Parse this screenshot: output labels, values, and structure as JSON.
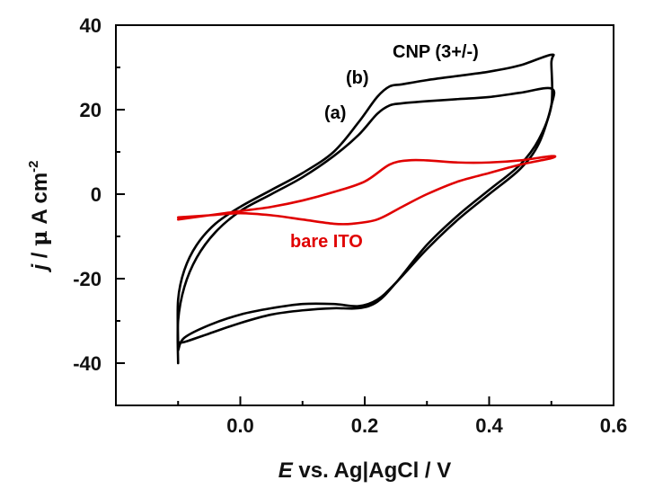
{
  "chart_data": {
    "type": "line",
    "xlabel": {
      "italic": "E",
      "rest": " vs. Ag|AgCl / V"
    },
    "ylabel": {
      "italic": "j",
      "mid": " / ",
      "mu": "μ",
      "rest": " A cm",
      "sup": "-2"
    },
    "xlim": [
      -0.2,
      0.6
    ],
    "ylim": [
      -50,
      40
    ],
    "xticks": [
      0.0,
      0.2,
      0.4,
      0.6
    ],
    "xtick_labels": [
      "0.0",
      "0.2",
      "0.4",
      "0.6"
    ],
    "yticks": [
      40,
      20,
      0,
      -20,
      -40
    ],
    "ytick_labels": [
      "40",
      "20",
      "0",
      "-20",
      "-40"
    ],
    "colors": {
      "cnp": "#000000",
      "ito": "#e00000"
    },
    "annotations": {
      "cnp": "CNP (3+/-)",
      "a": "(a)",
      "b": "(b)",
      "ito": "bare ITO"
    },
    "series": [
      {
        "id": "b",
        "color": "#000000",
        "x": [
          -0.1,
          -0.1,
          -0.09,
          -0.07,
          -0.04,
          0.0,
          0.05,
          0.1,
          0.15,
          0.19,
          0.22,
          0.24,
          0.26,
          0.3,
          0.35,
          0.4,
          0.45,
          0.5,
          0.5,
          0.5,
          0.48,
          0.45,
          0.4,
          0.35,
          0.3,
          0.25,
          0.22,
          0.19,
          0.15,
          0.1,
          0.05,
          0.0,
          -0.05,
          -0.09,
          -0.1
        ],
        "y": [
          -35,
          -25,
          -18,
          -12,
          -7,
          -3,
          1,
          5,
          10,
          17,
          23,
          25.5,
          26,
          27,
          28,
          29,
          30.5,
          33,
          31,
          21,
          13,
          7,
          1,
          -5,
          -12,
          -21,
          -25.5,
          -27,
          -27,
          -27.5,
          -28.5,
          -30.5,
          -33,
          -35,
          -35
        ]
      },
      {
        "id": "a",
        "color": "#000000",
        "x": [
          -0.1,
          -0.1,
          -0.09,
          -0.07,
          -0.04,
          0.0,
          0.05,
          0.1,
          0.15,
          0.19,
          0.22,
          0.24,
          0.26,
          0.3,
          0.35,
          0.4,
          0.45,
          0.5,
          0.5,
          0.48,
          0.45,
          0.4,
          0.35,
          0.3,
          0.25,
          0.22,
          0.19,
          0.15,
          0.1,
          0.05,
          0.0,
          -0.05,
          -0.09,
          -0.1
        ],
        "y": [
          -40,
          -30,
          -22,
          -15,
          -9,
          -4,
          0,
          4,
          9,
          14,
          19,
          21,
          21.5,
          22,
          22.5,
          23,
          24,
          25,
          21,
          12,
          6,
          0,
          -6,
          -13,
          -21,
          -25,
          -26.5,
          -26,
          -26,
          -27,
          -28.5,
          -31,
          -34,
          -37
        ]
      },
      {
        "id": "ito",
        "color": "#e00000",
        "x": [
          -0.1,
          -0.05,
          0.0,
          0.05,
          0.1,
          0.15,
          0.2,
          0.24,
          0.27,
          0.3,
          0.35,
          0.4,
          0.45,
          0.5,
          0.5,
          0.45,
          0.4,
          0.35,
          0.3,
          0.26,
          0.22,
          0.18,
          0.15,
          0.1,
          0.05,
          0.0,
          -0.05,
          -0.1
        ],
        "y": [
          -6,
          -5,
          -4,
          -3,
          -1.5,
          0.5,
          3,
          7,
          8,
          8,
          7.5,
          7.5,
          8,
          9,
          8.5,
          7,
          5,
          3,
          0,
          -3,
          -6,
          -7,
          -7,
          -6,
          -5,
          -4.5,
          -5,
          -5.5
        ]
      }
    ]
  }
}
